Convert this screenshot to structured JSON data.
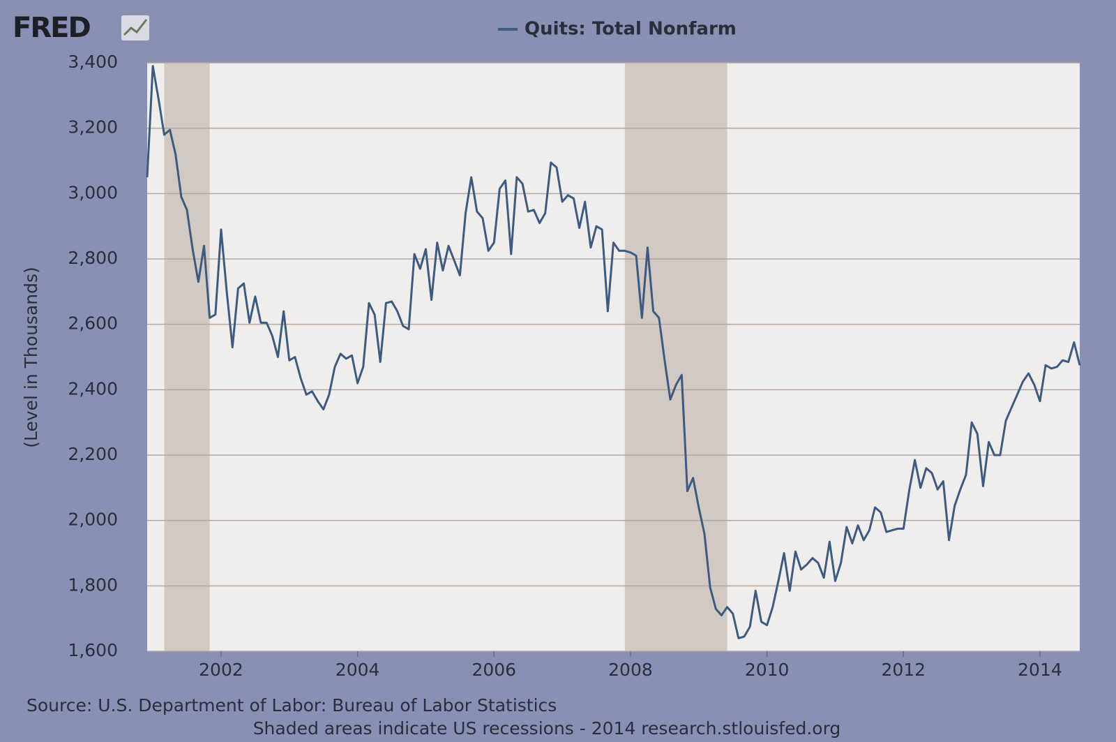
{
  "chart_data": {
    "type": "line",
    "logo": "FRED",
    "title": "Quits: Total Nonfarm",
    "y_label": "(Level in Thousands)",
    "source": "Source: U.S. Department of Labor: Bureau of Labor Statistics",
    "note": "Shaded areas indicate US recessions - 2014 research.stlouisfed.org",
    "xlim": [
      2000.917,
      2014.583
    ],
    "xticks": [
      2002,
      2004,
      2006,
      2008,
      2010,
      2012,
      2014
    ],
    "ylim": [
      1600,
      3400
    ],
    "yticks": [
      {
        "value": 1600,
        "label": "1,600"
      },
      {
        "value": 1800,
        "label": "1,800"
      },
      {
        "value": 2000,
        "label": "2,000"
      },
      {
        "value": 2200,
        "label": "2,200"
      },
      {
        "value": 2400,
        "label": "2,400"
      },
      {
        "value": 2600,
        "label": "2,600"
      },
      {
        "value": 2800,
        "label": "2,800"
      },
      {
        "value": 3000,
        "label": "3,000"
      },
      {
        "value": 3200,
        "label": "3,200"
      },
      {
        "value": 3400,
        "label": "3,400"
      }
    ],
    "grid": true,
    "recessions": [
      [
        2001.167,
        2001.833
      ],
      [
        2007.917,
        2009.417
      ]
    ],
    "recession_color": "#d2c9c3",
    "x": [
      2000.917,
      2001.0,
      2001.083,
      2001.167,
      2001.25,
      2001.333,
      2001.417,
      2001.5,
      2001.583,
      2001.667,
      2001.75,
      2001.833,
      2001.917,
      2002.0,
      2002.083,
      2002.167,
      2002.25,
      2002.333,
      2002.417,
      2002.5,
      2002.583,
      2002.667,
      2002.75,
      2002.833,
      2002.917,
      2003.0,
      2003.083,
      2003.167,
      2003.25,
      2003.333,
      2003.417,
      2003.5,
      2003.583,
      2003.667,
      2003.75,
      2003.833,
      2003.917,
      2004.0,
      2004.083,
      2004.167,
      2004.25,
      2004.333,
      2004.417,
      2004.5,
      2004.583,
      2004.667,
      2004.75,
      2004.833,
      2004.917,
      2005.0,
      2005.083,
      2005.167,
      2005.25,
      2005.333,
      2005.417,
      2005.5,
      2005.583,
      2005.667,
      2005.75,
      2005.833,
      2005.917,
      2006.0,
      2006.083,
      2006.167,
      2006.25,
      2006.333,
      2006.417,
      2006.5,
      2006.583,
      2006.667,
      2006.75,
      2006.833,
      2006.917,
      2007.0,
      2007.083,
      2007.167,
      2007.25,
      2007.333,
      2007.417,
      2007.5,
      2007.583,
      2007.667,
      2007.75,
      2007.833,
      2007.917,
      2008.0,
      2008.083,
      2008.167,
      2008.25,
      2008.333,
      2008.417,
      2008.5,
      2008.583,
      2008.667,
      2008.75,
      2008.833,
      2008.917,
      2009.0,
      2009.083,
      2009.167,
      2009.25,
      2009.333,
      2009.417,
      2009.5,
      2009.583,
      2009.667,
      2009.75,
      2009.833,
      2009.917,
      2010.0,
      2010.083,
      2010.167,
      2010.25,
      2010.333,
      2010.417,
      2010.5,
      2010.583,
      2010.667,
      2010.75,
      2010.833,
      2010.917,
      2011.0,
      2011.083,
      2011.167,
      2011.25,
      2011.333,
      2011.417,
      2011.5,
      2011.583,
      2011.667,
      2011.75,
      2011.833,
      2011.917,
      2012.0,
      2012.083,
      2012.167,
      2012.25,
      2012.333,
      2012.417,
      2012.5,
      2012.583,
      2012.667,
      2012.75,
      2012.833,
      2012.917,
      2013.0,
      2013.083,
      2013.167,
      2013.25,
      2013.333,
      2013.417,
      2013.5,
      2013.583,
      2013.667,
      2013.75,
      2013.833,
      2013.917,
      2014.0,
      2014.083,
      2014.167,
      2014.25,
      2014.333,
      2014.417,
      2014.5,
      2014.583
    ],
    "series": [
      {
        "name": "Quits: Total Nonfarm",
        "color": "#3d5a80",
        "values": [
          3050,
          3390,
          3290,
          3180,
          3195,
          3120,
          2990,
          2950,
          2830,
          2730,
          2840,
          2620,
          2630,
          2890,
          2700,
          2530,
          2710,
          2725,
          2605,
          2685,
          2605,
          2605,
          2565,
          2500,
          2640,
          2490,
          2500,
          2435,
          2385,
          2395,
          2365,
          2340,
          2385,
          2470,
          2510,
          2495,
          2505,
          2420,
          2470,
          2665,
          2630,
          2485,
          2665,
          2670,
          2640,
          2595,
          2585,
          2815,
          2770,
          2830,
          2675,
          2850,
          2765,
          2840,
          2795,
          2750,
          2940,
          3050,
          2945,
          2925,
          2825,
          2850,
          3015,
          3040,
          2815,
          3050,
          3030,
          2945,
          2950,
          2910,
          2940,
          3095,
          3080,
          2975,
          2995,
          2985,
          2895,
          2975,
          2835,
          2900,
          2890,
          2640,
          2850,
          2825,
          2825,
          2820,
          2810,
          2620,
          2835,
          2640,
          2620,
          2490,
          2370,
          2415,
          2445,
          2090,
          2130,
          2040,
          1960,
          1795,
          1730,
          1710,
          1735,
          1715,
          1640,
          1645,
          1675,
          1785,
          1690,
          1680,
          1735,
          1815,
          1900,
          1785,
          1905,
          1850,
          1865,
          1885,
          1870,
          1825,
          1935,
          1815,
          1870,
          1980,
          1930,
          1985,
          1940,
          1970,
          2040,
          2025,
          1965,
          1970,
          1975,
          1975,
          2090,
          2185,
          2100,
          2160,
          2145,
          2095,
          2120,
          1940,
          2045,
          2095,
          2140,
          2300,
          2265,
          2105,
          2240,
          2200,
          2200,
          2305,
          2345,
          2385,
          2425,
          2450,
          2415,
          2365,
          2475,
          2465,
          2470,
          2490,
          2485,
          2545,
          2475
        ]
      }
    ]
  }
}
